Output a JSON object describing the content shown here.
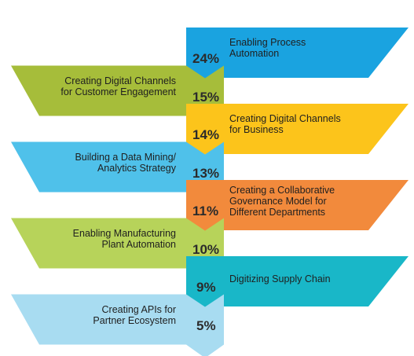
{
  "steps": [
    {
      "label": "Enabling Process Automation",
      "lines": [
        "Enabling Process",
        "Automation"
      ],
      "percent": "24%",
      "value": 24,
      "color": "#1aa3e0",
      "side": "right"
    },
    {
      "label": "Creating Digital Channels for Customer Engagement",
      "lines": [
        "Creating Digital Channels",
        "for Customer Engagement"
      ],
      "percent": "15%",
      "value": 15,
      "color": "#a6bd3a",
      "side": "left"
    },
    {
      "label": "Creating Digital Channels for Business",
      "lines": [
        "Creating Digital Channels",
        "for Business"
      ],
      "percent": "14%",
      "value": 14,
      "color": "#fcc41b",
      "side": "right"
    },
    {
      "label": "Building a Data Mining/ Analytics Strategy",
      "lines": [
        "Building a Data Mining/",
        "Analytics Strategy"
      ],
      "percent": "13%",
      "value": 13,
      "color": "#4fc1ea",
      "side": "left"
    },
    {
      "label": "Creating a Collaborative Governance Model for Different Departments",
      "lines": [
        "Creating a Collaborative",
        "Governance Model for",
        "Different Departments"
      ],
      "percent": "11%",
      "value": 11,
      "color": "#f28a3c",
      "side": "right"
    },
    {
      "label": "Enabling Manufacturing Plant Automation",
      "lines": [
        "Enabling Manufacturing",
        "Plant Automation"
      ],
      "percent": "10%",
      "value": 10,
      "color": "#b7d35a",
      "side": "left"
    },
    {
      "label": "Digitizing Supply Chain",
      "lines": [
        "Digitizing Supply Chain"
      ],
      "percent": "9%",
      "value": 9,
      "color": "#19b7c8",
      "side": "right"
    },
    {
      "label": "Creating APIs for Partner Ecosystem",
      "lines": [
        "Creating APIs for",
        "Partner Ecosystem"
      ],
      "percent": "5%",
      "value": 5,
      "color": "#a8dcf1",
      "side": "left"
    }
  ]
}
